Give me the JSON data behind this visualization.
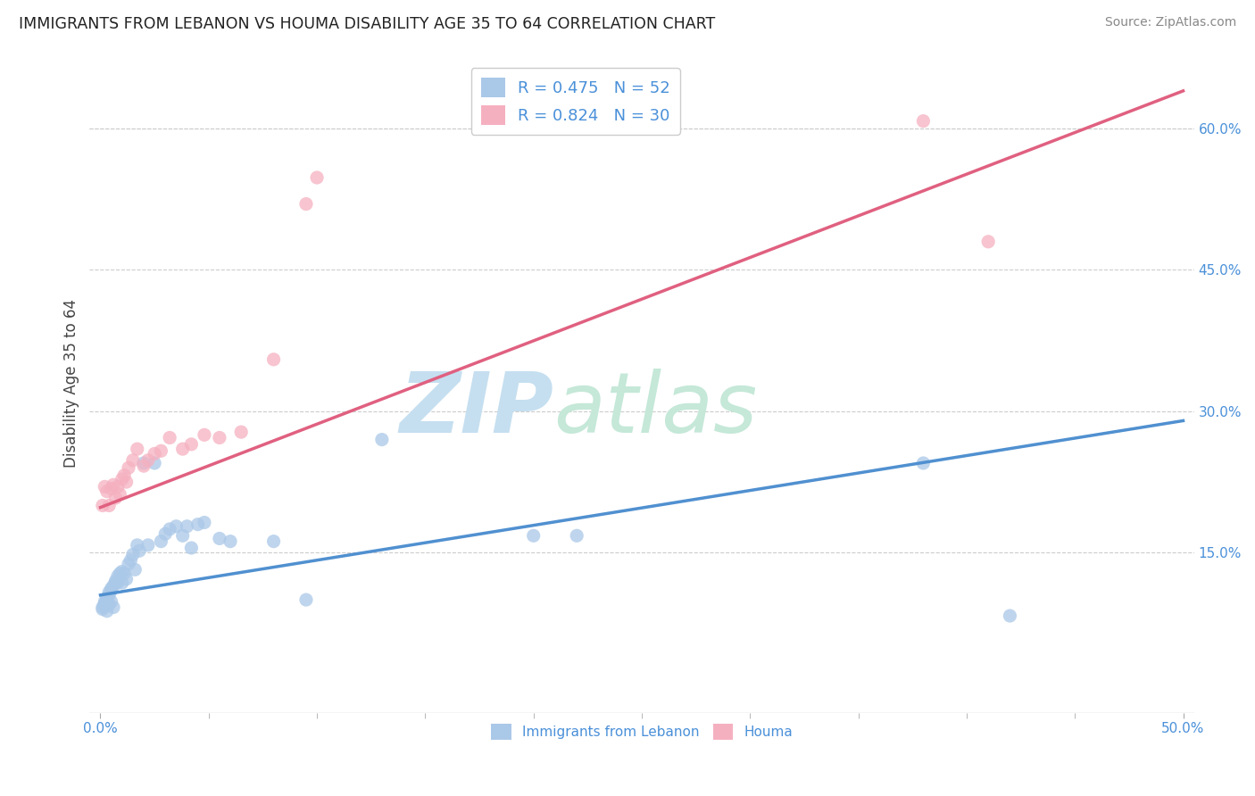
{
  "title": "IMMIGRANTS FROM LEBANON VS HOUMA DISABILITY AGE 35 TO 64 CORRELATION CHART",
  "source": "Source: ZipAtlas.com",
  "ylabel": "Disability Age 35 to 64",
  "xlim": [
    -0.005,
    0.505
  ],
  "ylim": [
    -0.02,
    0.68
  ],
  "x_tick_major": [
    0.0,
    0.5
  ],
  "x_tick_major_labels": [
    "0.0%",
    "50.0%"
  ],
  "x_tick_minor": [
    0.05,
    0.1,
    0.15,
    0.2,
    0.25,
    0.3,
    0.35,
    0.4,
    0.45
  ],
  "y_ticks": [
    0.15,
    0.3,
    0.45,
    0.6
  ],
  "y_tick_labels": [
    "15.0%",
    "30.0%",
    "45.0%",
    "60.0%"
  ],
  "legend_labels": [
    "Immigrants from Lebanon",
    "Houma"
  ],
  "blue_R": 0.475,
  "blue_N": 52,
  "pink_R": 0.824,
  "pink_N": 30,
  "blue_color": "#aac8e8",
  "pink_color": "#f5b0c0",
  "blue_line_color": "#5090d0",
  "pink_line_color": "#e06080",
  "blue_scatter": [
    [
      0.001,
      0.09
    ],
    [
      0.001,
      0.092
    ],
    [
      0.002,
      0.094
    ],
    [
      0.002,
      0.096
    ],
    [
      0.002,
      0.098
    ],
    [
      0.003,
      0.088
    ],
    [
      0.003,
      0.1
    ],
    [
      0.003,
      0.102
    ],
    [
      0.004,
      0.095
    ],
    [
      0.004,
      0.105
    ],
    [
      0.004,
      0.108
    ],
    [
      0.005,
      0.098
    ],
    [
      0.005,
      0.11
    ],
    [
      0.005,
      0.112
    ],
    [
      0.006,
      0.092
    ],
    [
      0.006,
      0.115
    ],
    [
      0.007,
      0.118
    ],
    [
      0.007,
      0.12
    ],
    [
      0.008,
      0.118
    ],
    [
      0.008,
      0.125
    ],
    [
      0.009,
      0.128
    ],
    [
      0.01,
      0.13
    ],
    [
      0.01,
      0.118
    ],
    [
      0.011,
      0.128
    ],
    [
      0.012,
      0.122
    ],
    [
      0.013,
      0.138
    ],
    [
      0.014,
      0.142
    ],
    [
      0.015,
      0.148
    ],
    [
      0.016,
      0.132
    ],
    [
      0.017,
      0.158
    ],
    [
      0.018,
      0.152
    ],
    [
      0.02,
      0.245
    ],
    [
      0.022,
      0.158
    ],
    [
      0.025,
      0.245
    ],
    [
      0.028,
      0.162
    ],
    [
      0.03,
      0.17
    ],
    [
      0.032,
      0.175
    ],
    [
      0.035,
      0.178
    ],
    [
      0.038,
      0.168
    ],
    [
      0.04,
      0.178
    ],
    [
      0.042,
      0.155
    ],
    [
      0.045,
      0.18
    ],
    [
      0.048,
      0.182
    ],
    [
      0.055,
      0.165
    ],
    [
      0.06,
      0.162
    ],
    [
      0.08,
      0.162
    ],
    [
      0.095,
      0.1
    ],
    [
      0.13,
      0.27
    ],
    [
      0.2,
      0.168
    ],
    [
      0.22,
      0.168
    ],
    [
      0.38,
      0.245
    ],
    [
      0.42,
      0.083
    ]
  ],
  "pink_scatter": [
    [
      0.001,
      0.2
    ],
    [
      0.002,
      0.22
    ],
    [
      0.003,
      0.215
    ],
    [
      0.004,
      0.2
    ],
    [
      0.005,
      0.218
    ],
    [
      0.006,
      0.222
    ],
    [
      0.007,
      0.208
    ],
    [
      0.008,
      0.22
    ],
    [
      0.009,
      0.212
    ],
    [
      0.01,
      0.228
    ],
    [
      0.011,
      0.232
    ],
    [
      0.012,
      0.225
    ],
    [
      0.013,
      0.24
    ],
    [
      0.015,
      0.248
    ],
    [
      0.017,
      0.26
    ],
    [
      0.02,
      0.242
    ],
    [
      0.022,
      0.248
    ],
    [
      0.025,
      0.255
    ],
    [
      0.028,
      0.258
    ],
    [
      0.032,
      0.272
    ],
    [
      0.038,
      0.26
    ],
    [
      0.042,
      0.265
    ],
    [
      0.048,
      0.275
    ],
    [
      0.055,
      0.272
    ],
    [
      0.065,
      0.278
    ],
    [
      0.08,
      0.355
    ],
    [
      0.095,
      0.52
    ],
    [
      0.1,
      0.548
    ],
    [
      0.38,
      0.608
    ],
    [
      0.41,
      0.48
    ]
  ],
  "blue_line_x": [
    0.0,
    0.5
  ],
  "blue_line_y": [
    0.105,
    0.29
  ],
  "pink_line_x": [
    0.0,
    0.5
  ],
  "pink_line_y": [
    0.198,
    0.64
  ],
  "background_color": "#ffffff",
  "grid_color": "#cccccc",
  "title_color": "#222222",
  "source_color": "#888888",
  "watermark_zip": "ZIP",
  "watermark_atlas": "atlas",
  "watermark_color_zip": "#c5dff0",
  "watermark_color_atlas": "#c5e8d8",
  "watermark_fontsize": 68
}
